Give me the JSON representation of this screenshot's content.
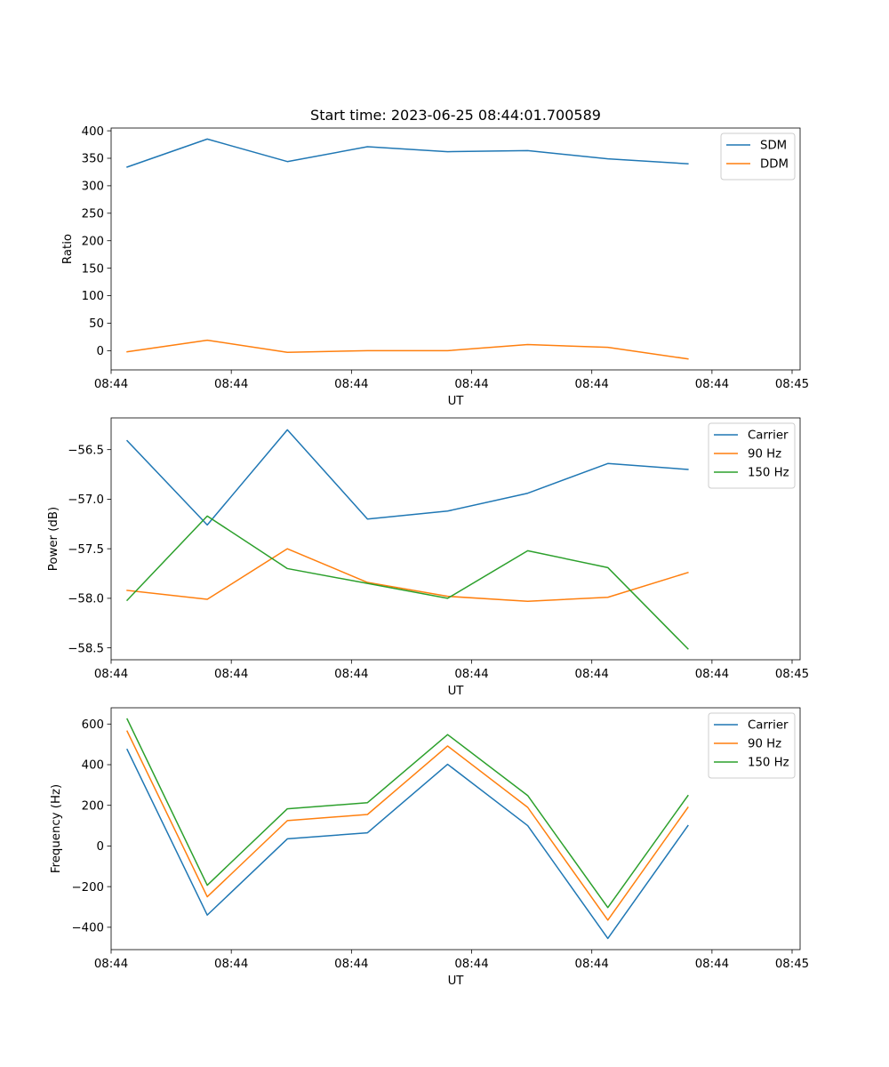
{
  "chart_data": [
    {
      "type": "line",
      "title": "Start time: 2023-06-25 08:44:01.700589",
      "xlabel": "UT",
      "ylabel": "Ratio",
      "x": [
        1,
        2,
        3,
        4,
        5,
        6,
        7,
        8
      ],
      "xlim": [
        0.8,
        9.4
      ],
      "x_ticks": [
        0.8,
        2.3,
        3.8,
        5.3,
        6.8,
        8.3,
        9.3
      ],
      "x_tick_labels": [
        "08:44",
        "08:44",
        "08:44",
        "08:44",
        "08:44",
        "08:44",
        "08:45"
      ],
      "ylim": [
        -35,
        405
      ],
      "y_ticks": [
        0,
        50,
        100,
        150,
        200,
        250,
        300,
        350,
        400
      ],
      "y_tick_labels": [
        "0",
        "50",
        "100",
        "150",
        "200",
        "250",
        "300",
        "350",
        "400"
      ],
      "grid": false,
      "legend_position": "top-right",
      "series": [
        {
          "name": "SDM",
          "color": "#1f77b4",
          "values": [
            334,
            385,
            344,
            371,
            362,
            364,
            349,
            340
          ]
        },
        {
          "name": "DDM",
          "color": "#ff7f0e",
          "values": [
            -2,
            19,
            -3,
            0,
            0,
            11,
            6,
            -15
          ]
        }
      ]
    },
    {
      "type": "line",
      "xlabel": "UT",
      "ylabel": "Power (dB)",
      "x": [
        1,
        2,
        3,
        4,
        5,
        6,
        7,
        8
      ],
      "xlim": [
        0.8,
        9.4
      ],
      "x_ticks": [
        0.8,
        2.3,
        3.8,
        5.3,
        6.8,
        8.3,
        9.3
      ],
      "x_tick_labels": [
        "08:44",
        "08:44",
        "08:44",
        "08:44",
        "08:44",
        "08:44",
        "08:45"
      ],
      "ylim": [
        -58.62,
        -56.18
      ],
      "y_ticks": [
        -58.5,
        -58.0,
        -57.5,
        -57.0,
        -56.5
      ],
      "y_tick_labels": [
        "−58.5",
        "−58.0",
        "−57.5",
        "−57.0",
        "−56.5"
      ],
      "grid": false,
      "legend_position": "top-right",
      "series": [
        {
          "name": "Carrier",
          "color": "#1f77b4",
          "values": [
            -56.41,
            -57.26,
            -56.3,
            -57.2,
            -57.12,
            -56.94,
            -56.64,
            -56.7
          ]
        },
        {
          "name": "90 Hz",
          "color": "#ff7f0e",
          "values": [
            -57.92,
            -58.01,
            -57.5,
            -57.84,
            -57.98,
            -58.03,
            -57.99,
            -57.74
          ]
        },
        {
          "name": "150 Hz",
          "color": "#2ca02c",
          "values": [
            -58.02,
            -57.17,
            -57.7,
            -57.85,
            -58.0,
            -57.52,
            -57.69,
            -58.51
          ]
        }
      ]
    },
    {
      "type": "line",
      "xlabel": "UT",
      "ylabel": "Frequency (Hz)",
      "x": [
        1,
        2,
        3,
        4,
        5,
        6,
        7,
        8
      ],
      "xlim": [
        0.8,
        9.4
      ],
      "x_ticks": [
        0.8,
        2.3,
        3.8,
        5.3,
        6.8,
        8.3,
        9.3
      ],
      "x_tick_labels": [
        "08:44",
        "08:44",
        "08:44",
        "08:44",
        "08:44",
        "08:44",
        "08:45"
      ],
      "ylim": [
        -510,
        680
      ],
      "y_ticks": [
        -400,
        -200,
        0,
        200,
        400,
        600
      ],
      "y_tick_labels": [
        "−400",
        "−200",
        "0",
        "200",
        "400",
        "600"
      ],
      "grid": false,
      "legend_position": "top-right",
      "series": [
        {
          "name": "Carrier",
          "color": "#1f77b4",
          "values": [
            475,
            -340,
            35,
            65,
            402,
            100,
            -455,
            100
          ]
        },
        {
          "name": "90 Hz",
          "color": "#ff7f0e",
          "values": [
            565,
            -250,
            125,
            155,
            492,
            190,
            -365,
            190
          ]
        },
        {
          "name": "150 Hz",
          "color": "#2ca02c",
          "values": [
            625,
            -193,
            183,
            213,
            548,
            248,
            -303,
            248
          ]
        }
      ]
    }
  ]
}
